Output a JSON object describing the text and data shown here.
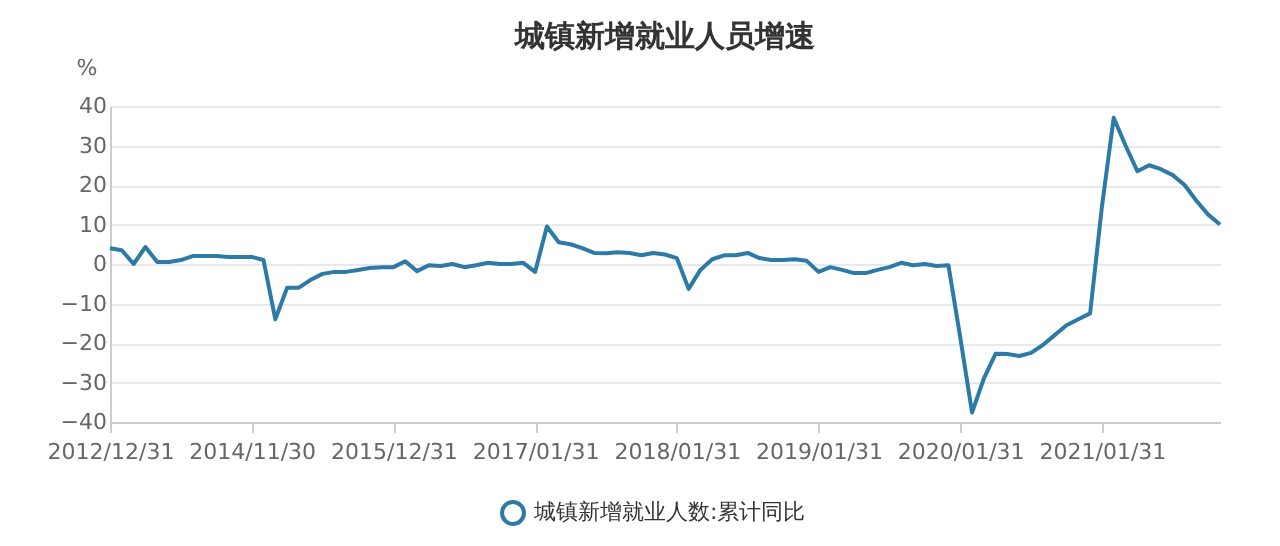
{
  "chart_data": {
    "type": "line",
    "title": "城镇新增就业人员增速",
    "ylabel": "%",
    "categories": [
      "2012/12/31",
      null,
      null,
      null,
      null,
      null,
      null,
      null,
      null,
      null,
      null,
      null,
      "2014/11/30",
      null,
      null,
      null,
      null,
      null,
      null,
      null,
      null,
      null,
      null,
      null,
      "2015/12/31",
      null,
      null,
      null,
      null,
      null,
      null,
      null,
      null,
      null,
      null,
      null,
      "2017/01/31",
      null,
      null,
      null,
      null,
      null,
      null,
      null,
      null,
      null,
      null,
      null,
      "2018/01/31",
      null,
      null,
      null,
      null,
      null,
      null,
      null,
      null,
      null,
      null,
      null,
      "2019/01/31",
      null,
      null,
      null,
      null,
      null,
      null,
      null,
      null,
      null,
      null,
      null,
      "2020/01/31",
      null,
      null,
      null,
      null,
      null,
      null,
      null,
      null,
      null,
      null,
      null,
      "2021/01/31",
      null,
      null,
      null,
      null,
      null,
      null,
      null,
      null,
      null,
      null
    ],
    "series": [
      {
        "name": "城镇新增就业人数:累计同比",
        "color": "#2e7aa7",
        "values": [
          4,
          3.5,
          0,
          4.3,
          0.5,
          0.5,
          1,
          2,
          2,
          2,
          1.8,
          1.8,
          1.8,
          1,
          -14,
          -6,
          -6,
          -4,
          -2.5,
          -2,
          -2,
          -1.5,
          -1,
          -0.8,
          -0.8,
          0.7,
          -1.8,
          -0.3,
          -0.5,
          0,
          -0.8,
          -0.3,
          0.3,
          0,
          0,
          0.3,
          -2,
          9.5,
          5.5,
          5,
          4,
          2.8,
          2.7,
          3,
          2.8,
          2.2,
          2.8,
          2.4,
          1.5,
          -6.3,
          -1.5,
          1.2,
          2.2,
          2.2,
          2.8,
          1.5,
          1,
          1,
          1.2,
          0.8,
          -2,
          -0.8,
          -1.5,
          -2.3,
          -2.3,
          -1.5,
          -0.8,
          0.3,
          -0.3,
          0,
          -0.5,
          -0.3,
          -18.5,
          -37.6,
          -29,
          -22.7,
          -22.8,
          -23.3,
          -22.5,
          -20.5,
          -18,
          -15.5,
          -14,
          -12.5,
          14.5,
          37,
          30,
          23.5,
          25,
          24,
          22.5,
          20,
          16,
          12.5,
          10
        ]
      }
    ],
    "ylim": [
      -40,
      40
    ],
    "yticks": [
      -40,
      -30,
      -20,
      -10,
      0,
      10,
      20,
      30,
      40
    ],
    "grid": "y",
    "legend": "bottom",
    "marker": "none",
    "line_style": "solid"
  }
}
